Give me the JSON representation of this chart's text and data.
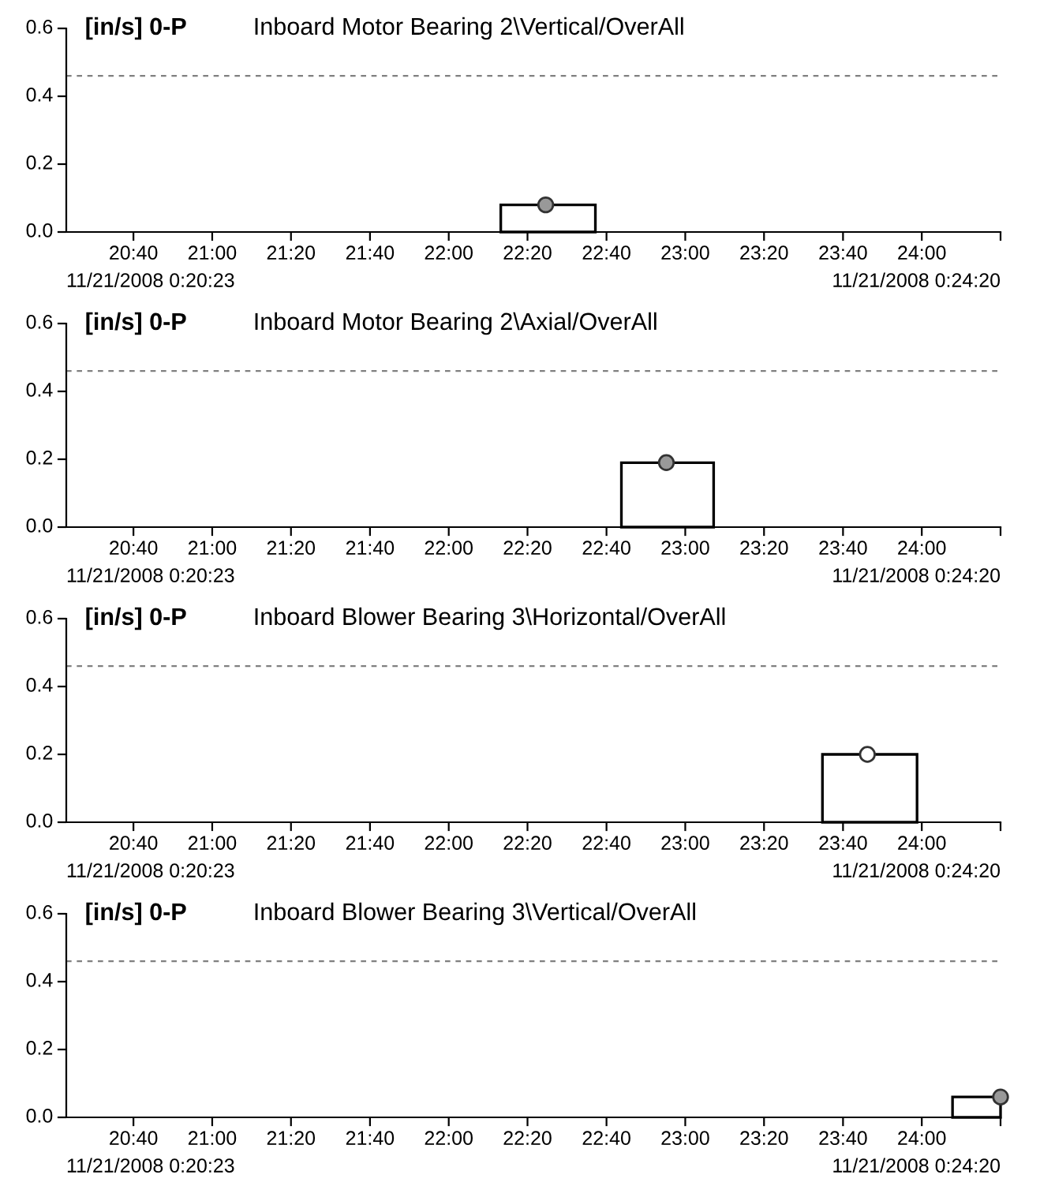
{
  "chart_data": [
    {
      "type": "histogram",
      "ylabel": "[in/s] 0-P",
      "title": "Inboard Motor Bearing 2\\Vertical/OverAll",
      "bins": [
        22.22,
        22.62
      ],
      "values": [
        0.08
      ],
      "color": "#000000",
      "series": [
        {
          "type": "scatter",
          "x": [
            22.41
          ],
          "values": [
            0.08
          ],
          "color": "#999999"
        }
      ],
      "xlim": [
        20.383,
        24.333
      ],
      "xticks": [
        {
          "value": 20.667,
          "label": "20:40"
        },
        {
          "value": 21,
          "label": "21:00"
        },
        {
          "value": 21.333,
          "label": "21:20"
        },
        {
          "value": 21.667,
          "label": "21:40"
        },
        {
          "value": 22,
          "label": "22:00"
        },
        {
          "value": 22.333,
          "label": "22:20"
        },
        {
          "value": 22.667,
          "label": "22:40"
        },
        {
          "value": 23,
          "label": "23:00"
        },
        {
          "value": 23.333,
          "label": "23:20"
        },
        {
          "value": 23.667,
          "label": "23:40"
        },
        {
          "value": 24,
          "label": "24:00"
        },
        {
          "value": 24.333,
          "label": null
        }
      ],
      "ylim": [
        0,
        0.6
      ],
      "yticks": [
        {
          "value": 0,
          "label": "0.0"
        },
        {
          "value": 0.2,
          "label": "0.2"
        },
        {
          "value": 0.4,
          "label": "0.4"
        },
        {
          "value": 0.6,
          "label": "0.6"
        }
      ],
      "ref_lines": [
        {
          "axis": "y",
          "value": 0.46,
          "color": "#808080",
          "line_style": "dashed"
        }
      ],
      "annotations": [
        "11/21/2008 0:20:23",
        "11/21/2008 0:24:20"
      ],
      "grid": false,
      "marker": "circle"
    },
    {
      "type": "histogram",
      "ylabel": "[in/s] 0-P",
      "title": "Inboard Motor Bearing 2\\Axial/OverAll",
      "bins": [
        22.73,
        23.12
      ],
      "values": [
        0.19
      ],
      "color": "#000000",
      "series": [
        {
          "type": "scatter",
          "x": [
            22.92
          ],
          "values": [
            0.19
          ],
          "color": "#999999"
        }
      ],
      "xlim": [
        20.383,
        24.333
      ],
      "xticks": [
        {
          "value": 20.667,
          "label": "20:40"
        },
        {
          "value": 21,
          "label": "21:00"
        },
        {
          "value": 21.333,
          "label": "21:20"
        },
        {
          "value": 21.667,
          "label": "21:40"
        },
        {
          "value": 22,
          "label": "22:00"
        },
        {
          "value": 22.333,
          "label": "22:20"
        },
        {
          "value": 22.667,
          "label": "22:40"
        },
        {
          "value": 23,
          "label": "23:00"
        },
        {
          "value": 23.333,
          "label": "23:20"
        },
        {
          "value": 23.667,
          "label": "23:40"
        },
        {
          "value": 24,
          "label": "24:00"
        },
        {
          "value": 24.333,
          "label": null
        }
      ],
      "ylim": [
        0,
        0.6
      ],
      "yticks": [
        {
          "value": 0,
          "label": "0.0"
        },
        {
          "value": 0.2,
          "label": "0.2"
        },
        {
          "value": 0.4,
          "label": "0.4"
        },
        {
          "value": 0.6,
          "label": "0.6"
        }
      ],
      "ref_lines": [
        {
          "axis": "y",
          "value": 0.46,
          "color": "#808080",
          "line_style": "dashed"
        }
      ],
      "annotations": [
        "11/21/2008 0:20:23",
        "11/21/2008 0:24:20"
      ],
      "grid": false,
      "marker": "circle"
    },
    {
      "type": "histogram",
      "ylabel": "[in/s] 0-P",
      "title": "Inboard Blower Bearing 3\\Horizontal/OverAll",
      "bins": [
        23.58,
        23.98
      ],
      "values": [
        0.2
      ],
      "color": "#000000",
      "series": [
        {
          "type": "scatter",
          "x": [
            23.77
          ],
          "values": [
            0.2
          ],
          "color": "#ffffff"
        }
      ],
      "xlim": [
        20.383,
        24.333
      ],
      "xticks": [
        {
          "value": 20.667,
          "label": "20:40"
        },
        {
          "value": 21,
          "label": "21:00"
        },
        {
          "value": 21.333,
          "label": "21:20"
        },
        {
          "value": 21.667,
          "label": "21:40"
        },
        {
          "value": 22,
          "label": "22:00"
        },
        {
          "value": 22.333,
          "label": "22:20"
        },
        {
          "value": 22.667,
          "label": "22:40"
        },
        {
          "value": 23,
          "label": "23:00"
        },
        {
          "value": 23.333,
          "label": "23:20"
        },
        {
          "value": 23.667,
          "label": "23:40"
        },
        {
          "value": 24,
          "label": "24:00"
        },
        {
          "value": 24.333,
          "label": null
        }
      ],
      "ylim": [
        0,
        0.6
      ],
      "yticks": [
        {
          "value": 0,
          "label": "0.0"
        },
        {
          "value": 0.2,
          "label": "0.2"
        },
        {
          "value": 0.4,
          "label": "0.4"
        },
        {
          "value": 0.6,
          "label": "0.6"
        }
      ],
      "ref_lines": [
        {
          "axis": "y",
          "value": 0.46,
          "color": "#808080",
          "line_style": "dashed"
        }
      ],
      "annotations": [
        "11/21/2008 0:20:23",
        "11/21/2008 0:24:20"
      ],
      "grid": false,
      "marker": "circle"
    },
    {
      "type": "histogram",
      "ylabel": "[in/s] 0-P",
      "title": "Inboard Blower Bearing 3\\Vertical/OverAll",
      "bins": [
        24.13,
        24.333
      ],
      "values": [
        0.06
      ],
      "color": "#000000",
      "series": [
        {
          "type": "scatter",
          "x": [
            24.333
          ],
          "values": [
            0.06
          ],
          "color": "#999999"
        }
      ],
      "xlim": [
        20.383,
        24.333
      ],
      "xticks": [
        {
          "value": 20.667,
          "label": "20:40"
        },
        {
          "value": 21,
          "label": "21:00"
        },
        {
          "value": 21.333,
          "label": "21:20"
        },
        {
          "value": 21.667,
          "label": "21:40"
        },
        {
          "value": 22,
          "label": "22:00"
        },
        {
          "value": 22.333,
          "label": "22:20"
        },
        {
          "value": 22.667,
          "label": "22:40"
        },
        {
          "value": 23,
          "label": "23:00"
        },
        {
          "value": 23.333,
          "label": "23:20"
        },
        {
          "value": 23.667,
          "label": "23:40"
        },
        {
          "value": 24,
          "label": "24:00"
        },
        {
          "value": 24.333,
          "label": null
        }
      ],
      "ylim": [
        0,
        0.6
      ],
      "yticks": [
        {
          "value": 0,
          "label": "0.0"
        },
        {
          "value": 0.2,
          "label": "0.2"
        },
        {
          "value": 0.4,
          "label": "0.4"
        },
        {
          "value": 0.6,
          "label": "0.6"
        }
      ],
      "ref_lines": [
        {
          "axis": "y",
          "value": 0.46,
          "color": "#808080",
          "line_style": "dashed"
        }
      ],
      "annotations": [
        "11/21/2008 0:20:23",
        "11/21/2008 0:24:20"
      ],
      "grid": false,
      "marker": "circle"
    }
  ]
}
